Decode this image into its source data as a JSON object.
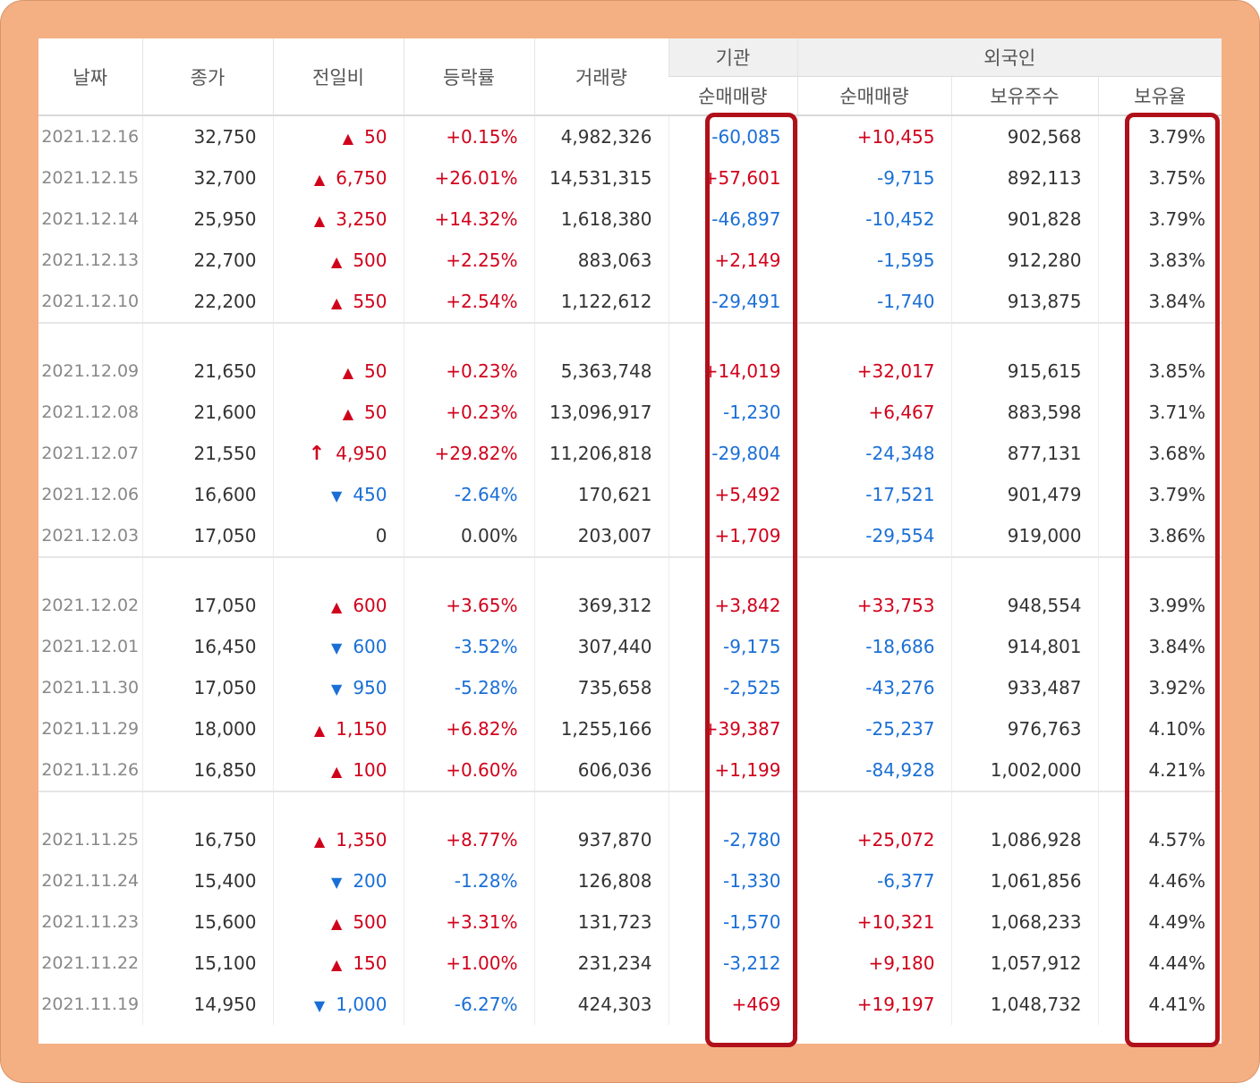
{
  "header": {
    "date": "날짜",
    "close": "종가",
    "change": "전일비",
    "rate": "등락률",
    "volume": "거래량",
    "institution": "기관",
    "foreign": "외국인",
    "inst_net": "순매매량",
    "foreign_net": "순매매량",
    "holdings": "보유주수",
    "hold_ratio": "보유율"
  },
  "groups": [
    [
      {
        "date": "2021.12.16",
        "close": "32,750",
        "dir": "up",
        "change": "50",
        "rate": "+0.15%",
        "volume": "4,982,326",
        "inst": "-60,085",
        "foreign": "+10,455",
        "hold": "902,568",
        "ratio": "3.79%"
      },
      {
        "date": "2021.12.15",
        "close": "32,700",
        "dir": "up",
        "change": "6,750",
        "rate": "+26.01%",
        "volume": "14,531,315",
        "inst": "+57,601",
        "foreign": "-9,715",
        "hold": "892,113",
        "ratio": "3.75%"
      },
      {
        "date": "2021.12.14",
        "close": "25,950",
        "dir": "up",
        "change": "3,250",
        "rate": "+14.32%",
        "volume": "1,618,380",
        "inst": "-46,897",
        "foreign": "-10,452",
        "hold": "901,828",
        "ratio": "3.79%"
      },
      {
        "date": "2021.12.13",
        "close": "22,700",
        "dir": "up",
        "change": "500",
        "rate": "+2.25%",
        "volume": "883,063",
        "inst": "+2,149",
        "foreign": "-1,595",
        "hold": "912,280",
        "ratio": "3.83%"
      },
      {
        "date": "2021.12.10",
        "close": "22,200",
        "dir": "up",
        "change": "550",
        "rate": "+2.54%",
        "volume": "1,122,612",
        "inst": "-29,491",
        "foreign": "-1,740",
        "hold": "913,875",
        "ratio": "3.84%"
      }
    ],
    [
      {
        "date": "2021.12.09",
        "close": "21,650",
        "dir": "up",
        "change": "50",
        "rate": "+0.23%",
        "volume": "5,363,748",
        "inst": "+14,019",
        "foreign": "+32,017",
        "hold": "915,615",
        "ratio": "3.85%"
      },
      {
        "date": "2021.12.08",
        "close": "21,600",
        "dir": "up",
        "change": "50",
        "rate": "+0.23%",
        "volume": "13,096,917",
        "inst": "-1,230",
        "foreign": "+6,467",
        "hold": "883,598",
        "ratio": "3.71%"
      },
      {
        "date": "2021.12.07",
        "close": "21,550",
        "dir": "upper",
        "change": "4,950",
        "rate": "+29.82%",
        "volume": "11,206,818",
        "inst": "-29,804",
        "foreign": "-24,348",
        "hold": "877,131",
        "ratio": "3.68%"
      },
      {
        "date": "2021.12.06",
        "close": "16,600",
        "dir": "down",
        "change": "450",
        "rate": "-2.64%",
        "volume": "170,621",
        "inst": "+5,492",
        "foreign": "-17,521",
        "hold": "901,479",
        "ratio": "3.79%"
      },
      {
        "date": "2021.12.03",
        "close": "17,050",
        "dir": "none",
        "change": "0",
        "rate": "0.00%",
        "volume": "203,007",
        "inst": "+1,709",
        "foreign": "-29,554",
        "hold": "919,000",
        "ratio": "3.86%"
      }
    ],
    [
      {
        "date": "2021.12.02",
        "close": "17,050",
        "dir": "up",
        "change": "600",
        "rate": "+3.65%",
        "volume": "369,312",
        "inst": "+3,842",
        "foreign": "+33,753",
        "hold": "948,554",
        "ratio": "3.99%"
      },
      {
        "date": "2021.12.01",
        "close": "16,450",
        "dir": "down",
        "change": "600",
        "rate": "-3.52%",
        "volume": "307,440",
        "inst": "-9,175",
        "foreign": "-18,686",
        "hold": "914,801",
        "ratio": "3.84%"
      },
      {
        "date": "2021.11.30",
        "close": "17,050",
        "dir": "down",
        "change": "950",
        "rate": "-5.28%",
        "volume": "735,658",
        "inst": "-2,525",
        "foreign": "-43,276",
        "hold": "933,487",
        "ratio": "3.92%"
      },
      {
        "date": "2021.11.29",
        "close": "18,000",
        "dir": "up",
        "change": "1,150",
        "rate": "+6.82%",
        "volume": "1,255,166",
        "inst": "+39,387",
        "foreign": "-25,237",
        "hold": "976,763",
        "ratio": "4.10%"
      },
      {
        "date": "2021.11.26",
        "close": "16,850",
        "dir": "up",
        "change": "100",
        "rate": "+0.60%",
        "volume": "606,036",
        "inst": "+1,199",
        "foreign": "-84,928",
        "hold": "1,002,000",
        "ratio": "4.21%"
      }
    ],
    [
      {
        "date": "2021.11.25",
        "close": "16,750",
        "dir": "up",
        "change": "1,350",
        "rate": "+8.77%",
        "volume": "937,870",
        "inst": "-2,780",
        "foreign": "+25,072",
        "hold": "1,086,928",
        "ratio": "4.57%"
      },
      {
        "date": "2021.11.24",
        "close": "15,400",
        "dir": "down",
        "change": "200",
        "rate": "-1.28%",
        "volume": "126,808",
        "inst": "-1,330",
        "foreign": "-6,377",
        "hold": "1,061,856",
        "ratio": "4.46%"
      },
      {
        "date": "2021.11.23",
        "close": "15,600",
        "dir": "up",
        "change": "500",
        "rate": "+3.31%",
        "volume": "131,723",
        "inst": "-1,570",
        "foreign": "+10,321",
        "hold": "1,068,233",
        "ratio": "4.49%"
      },
      {
        "date": "2021.11.22",
        "close": "15,100",
        "dir": "up",
        "change": "150",
        "rate": "+1.00%",
        "volume": "231,234",
        "inst": "-3,212",
        "foreign": "+9,180",
        "hold": "1,057,912",
        "ratio": "4.44%"
      },
      {
        "date": "2021.11.19",
        "close": "14,950",
        "dir": "down",
        "change": "1,000",
        "rate": "-6.27%",
        "volume": "424,303",
        "inst": "+469",
        "foreign": "+19,197",
        "hold": "1,048,732",
        "ratio": "4.41%"
      }
    ]
  ],
  "colors": {
    "up": "#d0021b",
    "down": "#1a6fd6",
    "frame": "#f4b083",
    "highlight": "#b0101a"
  },
  "highlighted_columns": [
    "기관 순매매량",
    "보유율"
  ]
}
